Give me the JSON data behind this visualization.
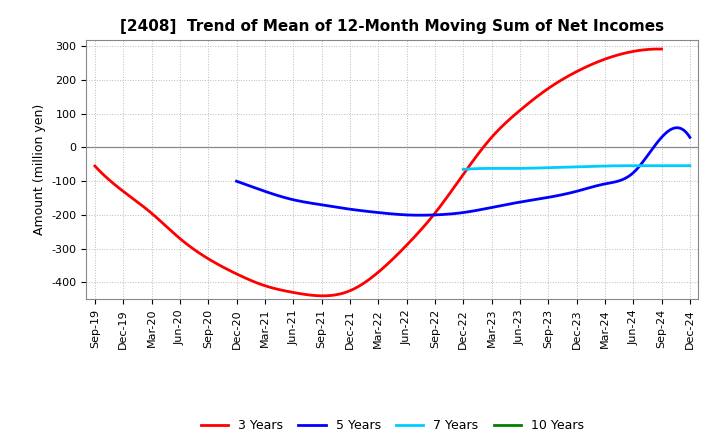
{
  "title": "[2408]  Trend of Mean of 12-Month Moving Sum of Net Incomes",
  "ylabel": "Amount (million yen)",
  "x_labels": [
    "Sep-19",
    "Dec-19",
    "Mar-20",
    "Jun-20",
    "Sep-20",
    "Dec-20",
    "Mar-21",
    "Jun-21",
    "Sep-21",
    "Dec-21",
    "Mar-22",
    "Jun-22",
    "Sep-22",
    "Dec-22",
    "Mar-23",
    "Jun-23",
    "Sep-23",
    "Dec-23",
    "Mar-24",
    "Jun-24",
    "Sep-24",
    "Dec-24"
  ],
  "ylim": [
    -450,
    320
  ],
  "yticks": [
    -400,
    -300,
    -200,
    -100,
    0,
    100,
    200,
    300
  ],
  "series": {
    "3 Years": {
      "color": "#FF0000",
      "data_x": [
        0,
        1,
        2,
        3,
        4,
        5,
        6,
        7,
        8,
        9,
        10,
        11,
        12,
        13,
        14,
        15,
        16,
        17,
        18,
        19,
        20
      ],
      "data_y": [
        -55,
        -130,
        -195,
        -270,
        -330,
        -375,
        -410,
        -430,
        -440,
        -425,
        -370,
        -290,
        -195,
        -80,
        30,
        110,
        175,
        225,
        262,
        285,
        292
      ]
    },
    "5 Years": {
      "color": "#0000FF",
      "data_x": [
        5,
        6,
        7,
        8,
        9,
        10,
        11,
        12,
        13,
        14,
        15,
        16,
        17,
        18,
        19,
        20,
        21
      ],
      "data_y": [
        -100,
        -130,
        -155,
        -170,
        -183,
        -193,
        -200,
        -200,
        -193,
        -178,
        -162,
        -148,
        -130,
        -108,
        -75,
        30,
        30
      ]
    },
    "7 Years": {
      "color": "#00CCFF",
      "data_x": [
        13,
        14,
        15,
        16,
        17,
        18,
        19,
        20,
        21
      ],
      "data_y": [
        -65,
        -62,
        -62,
        -60,
        -58,
        -55,
        -54,
        -54,
        -54
      ]
    },
    "10 Years": {
      "color": "#008000",
      "data_x": [],
      "data_y": []
    }
  },
  "background_color": "#FFFFFF",
  "grid_color": "#BBBBBB",
  "zero_line_color": "#888888",
  "title_fontsize": 11,
  "axis_fontsize": 9,
  "tick_fontsize": 8,
  "legend_fontsize": 9
}
